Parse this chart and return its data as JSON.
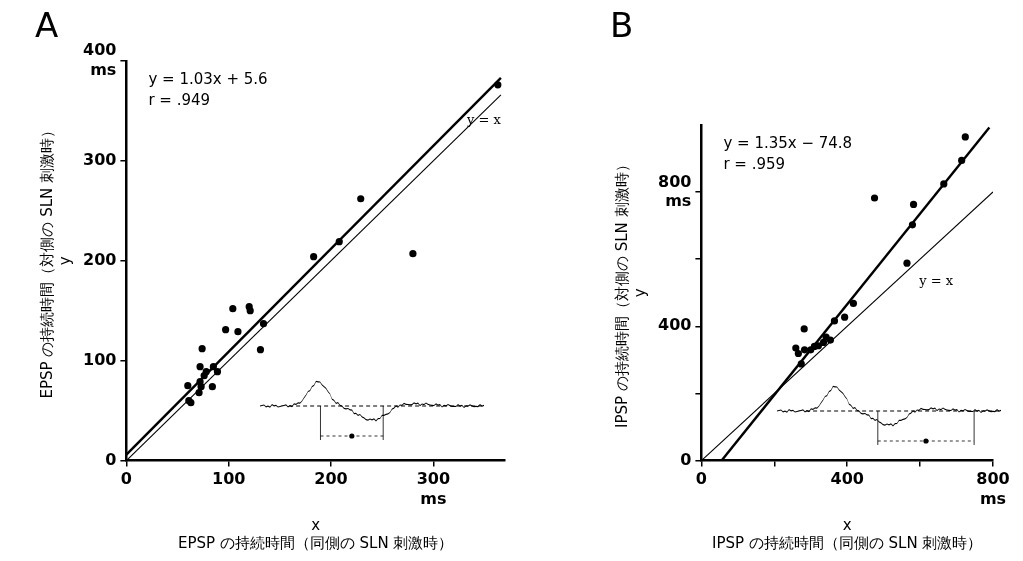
{
  "chart_data": [
    {
      "type": "scatter",
      "title": "A",
      "xlabel": "x\nEPSP の持続時間（同側の SLN 刺激時）",
      "ylabel": "EPSP の持続時間（対側の SLN 刺激時）\ny",
      "xlim": [
        0,
        370
      ],
      "ylim": [
        0,
        400
      ],
      "xticks": [
        0,
        100,
        200,
        {
          "value": 300,
          "label": "300\nms"
        }
      ],
      "yticks": [
        0,
        100,
        200,
        300,
        {
          "value": 400,
          "label": "400\nms"
        }
      ],
      "grid": false,
      "legend": false,
      "annotations": [
        "y = 1.03x + 5.6",
        "r = .949"
      ],
      "series": [
        {
          "type": "scatter",
          "marker": "circle",
          "color": "#000000",
          "x": [
            363,
            229,
            208,
            183,
            280,
            104,
            120,
            121,
            97,
            109,
            134,
            131,
            74,
            72,
            60,
            61,
            63,
            72,
            71,
            73,
            76,
            78,
            85,
            89,
            84
          ],
          "values": [
            376,
            262,
            219,
            204,
            207,
            152,
            154,
            150,
            131,
            129,
            137,
            111,
            112,
            94,
            75,
            60,
            58,
            79,
            68,
            74,
            85,
            89,
            94,
            89,
            74
          ]
        },
        {
          "type": "line",
          "marker": "none",
          "color": "#000000",
          "x": [
            0,
            366
          ],
          "values": [
            6,
            383
          ]
        },
        {
          "type": "line",
          "marker": "none",
          "name": "y = x",
          "color": "#000000",
          "x": [
            0,
            366
          ],
          "values": [
            0,
            366
          ]
        }
      ]
    },
    {
      "type": "scatter",
      "title": "B",
      "xlabel": "x\nIPSP の持続時間（同側の SLN 刺激時）",
      "ylabel": "IPSP の持続時間（対側の SLN 刺激時）\ny",
      "xlim": [
        0,
        800
      ],
      "ylim": [
        0,
        1000
      ],
      "xticks": [
        0,
        {
          "value": 200,
          "label": null
        },
        400,
        {
          "value": 600,
          "label": null
        },
        {
          "value": 800,
          "label": "800\nms"
        }
      ],
      "yticks": [
        0,
        {
          "value": 200,
          "label": null
        },
        400,
        {
          "value": 600,
          "label": null
        },
        {
          "value": 800,
          "label": "800\nms"
        }
      ],
      "grid": false,
      "legend": false,
      "annotations": [
        "y = 1.35x − 74.8",
        "r = .959"
      ],
      "series": [
        {
          "type": "scatter",
          "marker": "circle",
          "color": "#000000",
          "x": [
            724,
            714,
            665,
            475,
            582,
            579,
            564,
            417,
            393,
            365,
            282,
            259,
            266,
            283,
            274,
            321,
            342,
            354,
            335,
            300,
            310
          ],
          "values": [
            964,
            894,
            824,
            782,
            763,
            702,
            588,
            468,
            427,
            416,
            392,
            335,
            319,
            330,
            288,
            342,
            368,
            359,
            352,
            330,
            340
          ]
        },
        {
          "type": "line",
          "marker": "none",
          "color": "#000000",
          "x": [
            56,
            790
          ],
          "values": [
            1,
            992
          ]
        },
        {
          "type": "line",
          "marker": "none",
          "name": "y = x",
          "color": "#000000",
          "x": [
            0,
            800
          ],
          "values": [
            0,
            800
          ]
        }
      ]
    }
  ]
}
